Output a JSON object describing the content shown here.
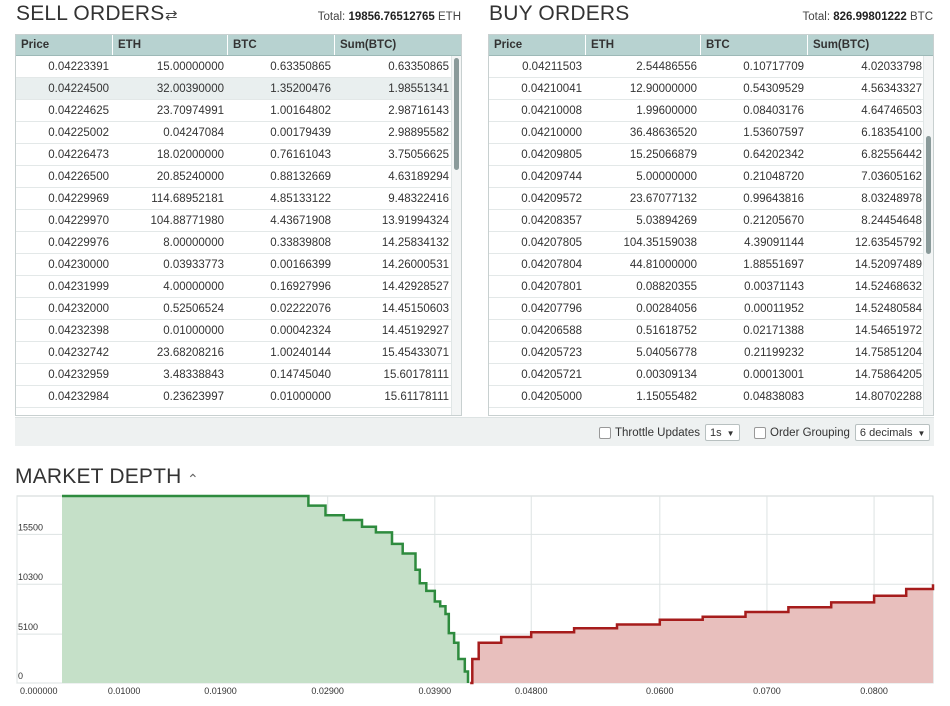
{
  "sell": {
    "title": "SELL ORDERS",
    "swap_icon": "swap-icon",
    "total_label": "Total:",
    "total_value": "19856.76512765",
    "total_unit": "ETH",
    "columns": [
      "Price",
      "ETH",
      "BTC",
      "Sum(BTC)"
    ],
    "rows": [
      [
        "0.04223391",
        "15.00000000",
        "0.63350865",
        "0.63350865"
      ],
      [
        "0.04224500",
        "32.00390000",
        "1.35200476",
        "1.98551341"
      ],
      [
        "0.04224625",
        "23.70974991",
        "1.00164802",
        "2.98716143"
      ],
      [
        "0.04225002",
        "0.04247084",
        "0.00179439",
        "2.98895582"
      ],
      [
        "0.04226473",
        "18.02000000",
        "0.76161043",
        "3.75056625"
      ],
      [
        "0.04226500",
        "20.85240000",
        "0.88132669",
        "4.63189294"
      ],
      [
        "0.04229969",
        "114.68952181",
        "4.85133122",
        "9.48322416"
      ],
      [
        "0.04229970",
        "104.88771980",
        "4.43671908",
        "13.91994324"
      ],
      [
        "0.04229976",
        "8.00000000",
        "0.33839808",
        "14.25834132"
      ],
      [
        "0.04230000",
        "0.03933773",
        "0.00166399",
        "14.26000531"
      ],
      [
        "0.04231999",
        "4.00000000",
        "0.16927996",
        "14.42928527"
      ],
      [
        "0.04232000",
        "0.52506524",
        "0.02222076",
        "14.45150603"
      ],
      [
        "0.04232398",
        "0.01000000",
        "0.00042324",
        "14.45192927"
      ],
      [
        "0.04232742",
        "23.68208216",
        "1.00240144",
        "15.45433071"
      ],
      [
        "0.04232959",
        "3.48338843",
        "0.14745040",
        "15.60178111"
      ],
      [
        "0.04232984",
        "0.23623997",
        "0.01000000",
        "15.61178111"
      ]
    ]
  },
  "buy": {
    "title": "BUY ORDERS",
    "total_label": "Total:",
    "total_value": "826.99801222",
    "total_unit": "BTC",
    "columns": [
      "Price",
      "ETH",
      "BTC",
      "Sum(BTC)"
    ],
    "rows": [
      [
        "0.04211503",
        "2.54486556",
        "0.10717709",
        "4.02033798"
      ],
      [
        "0.04210041",
        "12.90000000",
        "0.54309529",
        "4.56343327"
      ],
      [
        "0.04210008",
        "1.99600000",
        "0.08403176",
        "4.64746503"
      ],
      [
        "0.04210000",
        "36.48636520",
        "1.53607597",
        "6.18354100"
      ],
      [
        "0.04209805",
        "15.25066879",
        "0.64202342",
        "6.82556442"
      ],
      [
        "0.04209744",
        "5.00000000",
        "0.21048720",
        "7.03605162"
      ],
      [
        "0.04209572",
        "23.67077132",
        "0.99643816",
        "8.03248978"
      ],
      [
        "0.04208357",
        "5.03894269",
        "0.21205670",
        "8.24454648"
      ],
      [
        "0.04207805",
        "104.35159038",
        "4.39091144",
        "12.63545792"
      ],
      [
        "0.04207804",
        "44.81000000",
        "1.88551697",
        "14.52097489"
      ],
      [
        "0.04207801",
        "0.08820355",
        "0.00371143",
        "14.52468632"
      ],
      [
        "0.04207796",
        "0.00284056",
        "0.00011952",
        "14.52480584"
      ],
      [
        "0.04206588",
        "0.51618752",
        "0.02171388",
        "14.54651972"
      ],
      [
        "0.04205723",
        "5.04056778",
        "0.21199232",
        "14.75851204"
      ],
      [
        "0.04205721",
        "0.00309134",
        "0.00013001",
        "14.75864205"
      ],
      [
        "0.04205000",
        "1.15055482",
        "0.04838083",
        "14.80702288"
      ]
    ]
  },
  "controls": {
    "throttle_label": "Throttle Updates",
    "throttle_value": "1s",
    "grouping_label": "Order Grouping",
    "grouping_value": "6 decimals"
  },
  "market_depth": {
    "title": "MARKET DEPTH",
    "toggle_icon": "chevron-up-icon"
  },
  "colors": {
    "bid_fill": "#c5e0c8",
    "bid_line": "#2e8b3e",
    "ask_fill": "#e8bfbd",
    "ask_line": "#a61c1c",
    "header_bg": "#b7d2d0"
  },
  "chart_data": {
    "type": "area",
    "title": "",
    "xlabel": "",
    "ylabel": "",
    "xlim": [
      0,
      0.0855
    ],
    "ylim": [
      0,
      19500
    ],
    "x_ticks": [
      "0.000000",
      "0.01000",
      "0.01900",
      "0.02900",
      "0.03900",
      "0.04800",
      "0.0600",
      "0.0700",
      "0.0800"
    ],
    "x_tick_values": [
      0,
      0.01,
      0.019,
      0.029,
      0.039,
      0.048,
      0.06,
      0.07,
      0.08
    ],
    "y_ticks": [
      "0",
      "5100",
      "10300",
      "15500"
    ],
    "y_tick_values": [
      0,
      5100,
      10300,
      15500
    ],
    "grid": true,
    "series": [
      {
        "side": "bid",
        "x": [
          0.0042,
          0.0266,
          0.0272,
          0.0288,
          0.0305,
          0.0322,
          0.0335,
          0.035,
          0.036,
          0.0372,
          0.0376,
          0.0382,
          0.039,
          0.0395,
          0.04,
          0.0403,
          0.0408,
          0.0412,
          0.0418,
          0.0421
        ],
        "y": [
          19500,
          19500,
          18500,
          17500,
          17000,
          16300,
          15700,
          14500,
          13500,
          11800,
          10400,
          9600,
          8500,
          8000,
          7200,
          5200,
          4200,
          2500,
          1200,
          0
        ]
      },
      {
        "side": "ask",
        "x": [
          0.0423,
          0.0425,
          0.0431,
          0.0452,
          0.048,
          0.052,
          0.056,
          0.06,
          0.064,
          0.068,
          0.072,
          0.076,
          0.08,
          0.083,
          0.0855
        ],
        "y": [
          0,
          2500,
          4200,
          4800,
          5300,
          5700,
          6100,
          6600,
          6900,
          7400,
          7900,
          8400,
          9100,
          9800,
          10300
        ]
      }
    ]
  }
}
